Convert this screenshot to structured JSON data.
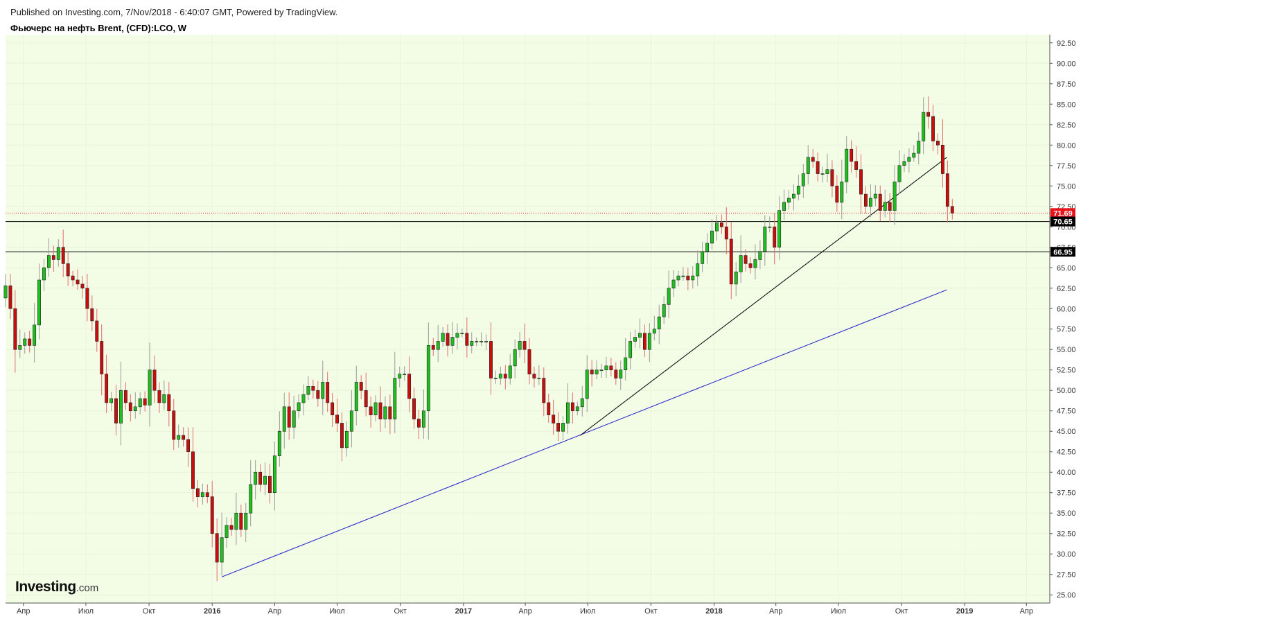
{
  "header": {
    "published": "Published on Investing.com, 7/Nov/2018 - 6:40:07 GMT, Powered by TradingView.",
    "title": "Фьючерс на нефть Brent, (CFD):LCO, W"
  },
  "logo": {
    "main": "Investing",
    "sub": ".com"
  },
  "colors": {
    "plot_bg": "#f3fde6",
    "up": "#1fbf1f",
    "down": "#cc0d0d",
    "wick_up": "#9a9a9a",
    "wick_down": "#e36b6b",
    "trend_blue": "#2e2ecc",
    "trend_black": "#111111",
    "price_marker": "#e8141a",
    "level_marker": "#000000"
  },
  "chart_data": {
    "type": "candlestick",
    "symbol": "LCO",
    "interval": "W",
    "ylim": [
      24,
      93.5
    ],
    "y_ticks": [
      "25.00",
      "27.50",
      "30.00",
      "32.50",
      "35.00",
      "37.50",
      "40.00",
      "42.50",
      "45.00",
      "47.50",
      "50.00",
      "52.50",
      "55.00",
      "57.50",
      "60.00",
      "62.50",
      "65.00",
      "67.50",
      "70.00",
      "72.50",
      "75.00",
      "77.50",
      "80.00",
      "82.50",
      "85.00",
      "87.50",
      "90.00",
      "92.50"
    ],
    "x_range": [
      "2015-03-06",
      "2019-05-05"
    ],
    "x_ticks": [
      {
        "date": "2015-04-01",
        "label": "Апр"
      },
      {
        "date": "2015-07-01",
        "label": "Июл"
      },
      {
        "date": "2015-10-01",
        "label": "Окт"
      },
      {
        "date": "2016-01-01",
        "label": "2016"
      },
      {
        "date": "2016-04-01",
        "label": "Апр"
      },
      {
        "date": "2016-07-01",
        "label": "Июл"
      },
      {
        "date": "2016-10-01",
        "label": "Окт"
      },
      {
        "date": "2017-01-01",
        "label": "2017"
      },
      {
        "date": "2017-04-01",
        "label": "Апр"
      },
      {
        "date": "2017-07-01",
        "label": "Июл"
      },
      {
        "date": "2017-10-01",
        "label": "Окт"
      },
      {
        "date": "2018-01-01",
        "label": "2018"
      },
      {
        "date": "2018-04-01",
        "label": "Апр"
      },
      {
        "date": "2018-07-01",
        "label": "Июл"
      },
      {
        "date": "2018-10-01",
        "label": "Окт"
      },
      {
        "date": "2019-01-01",
        "label": "2019"
      },
      {
        "date": "2019-04-01",
        "label": "Апр"
      }
    ],
    "first_candle_date": "2015-03-06",
    "candle_interval_days": 7,
    "closes": [
      62.8,
      60.0,
      55.0,
      55.5,
      56.3,
      55.5,
      58.0,
      63.5,
      65.0,
      66.5,
      66.0,
      67.5,
      65.5,
      64.0,
      63.5,
      63.0,
      62.5,
      60.0,
      58.5,
      56.0,
      52.0,
      48.5,
      49.0,
      46.0,
      50.0,
      48.5,
      47.5,
      48.0,
      49.0,
      48.2,
      52.5,
      50.0,
      48.5,
      49.5,
      47.5,
      44.0,
      44.5,
      44.0,
      42.5,
      38.0,
      37.0,
      37.5,
      37.0,
      32.5,
      29.0,
      32.0,
      33.5,
      33.0,
      35.0,
      33.0,
      35.0,
      38.5,
      40.0,
      38.5,
      39.5,
      37.5,
      42.0,
      45.0,
      48.0,
      45.5,
      47.5,
      48.5,
      49.5,
      50.5,
      50.0,
      49.0,
      51.0,
      48.5,
      47.0,
      46.0,
      43.0,
      45.0,
      47.5,
      51.0,
      50.0,
      48.0,
      47.0,
      48.5,
      46.5,
      48.0,
      46.5,
      51.5,
      52.0,
      52.0,
      49.0,
      46.5,
      45.5,
      47.5,
      55.5,
      55.0,
      56.0,
      57.0,
      55.5,
      56.5,
      57.0,
      57.0,
      55.5,
      56.0,
      56.0,
      56.0,
      56.0,
      51.5,
      51.5,
      52.0,
      51.5,
      53.0,
      55.0,
      56.0,
      55.0,
      52.0,
      51.5,
      51.5,
      48.5,
      47.0,
      46.0,
      45.0,
      46.0,
      48.5,
      47.5,
      48.0,
      49.0,
      52.5,
      52.0,
      52.5,
      52.5,
      53.0,
      52.5,
      51.5,
      52.5,
      54.0,
      56.0,
      56.5,
      57.0,
      55.0,
      57.0,
      57.5,
      59.0,
      60.5,
      62.5,
      63.5,
      64.0,
      64.0,
      63.5,
      64.0,
      65.5,
      67.0,
      68.0,
      69.5,
      70.5,
      70.0,
      68.5,
      63.0,
      64.5,
      66.5,
      65.5,
      65.0,
      66.0,
      67.0,
      70.0,
      70.0,
      67.5,
      72.0,
      73.0,
      73.5,
      74.0,
      75.0,
      76.5,
      78.5,
      78.0,
      76.5,
      76.5,
      77.0,
      75.0,
      73.0,
      75.5,
      79.5,
      78.0,
      77.0,
      74.0,
      72.5,
      73.5,
      74.0,
      72.0,
      73.0,
      72.0,
      75.5,
      77.5,
      78.0,
      78.5,
      79.0,
      80.5,
      84.0,
      83.5,
      80.5,
      80.0,
      76.5,
      72.5,
      71.69
    ],
    "trend_lines": [
      {
        "color": "blue",
        "from": [
          "2016-01-15",
          27.2
        ],
        "to": [
          "2018-12-06",
          62.3
        ]
      },
      {
        "color": "black",
        "from": [
          "2017-06-20",
          44.5
        ],
        "to": [
          "2018-12-06",
          78.5
        ]
      }
    ],
    "horizontal_levels": [
      {
        "value": 71.69,
        "label": "71.69",
        "style": "dotted-red",
        "marker": "red"
      },
      {
        "value": 70.65,
        "label": "70.65",
        "style": "solid-black",
        "marker": "black"
      },
      {
        "value": 66.95,
        "label": "66.95",
        "style": "solid-black",
        "marker": "black"
      }
    ]
  }
}
